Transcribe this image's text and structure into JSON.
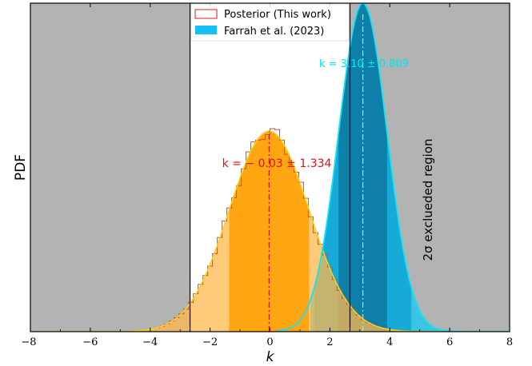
{
  "chart_data": {
    "type": "area",
    "xlabel": "k",
    "ylabel": "PDF",
    "xlim": [
      -8,
      8
    ],
    "ylim": [
      0,
      1.0
    ],
    "xticks": [
      "−8",
      "−6",
      "−4",
      "−2",
      "0",
      "2",
      "4",
      "6",
      "8"
    ],
    "grid": false,
    "legend_position": "top-center",
    "legend": [
      {
        "label": "Posterior (This work)",
        "style": "outline",
        "color": "#e8403a"
      },
      {
        "label": "Farrah et al. (2023)",
        "style": "filled",
        "color": "#17bff2"
      }
    ],
    "excluded_region": {
      "label": "2σ exclueded region",
      "x_low": -2.67,
      "x_high": 2.67,
      "color": "#b3b3b3"
    },
    "series": [
      {
        "name": "Posterior (This work)",
        "distribution": "gaussian",
        "mean": -0.03,
        "sigma": 1.334,
        "annotation": "k = − 0.03 ± 1.334",
        "annotation_color": "#e01010",
        "color": "#ffa500"
      },
      {
        "name": "Farrah et al. (2023)",
        "distribution": "gaussian",
        "mean": 3.1,
        "sigma": 0.809,
        "annotation": "k = 3.10 ± 0.809",
        "annotation_color": "#00e5ee",
        "color": "#17bff2"
      }
    ]
  }
}
